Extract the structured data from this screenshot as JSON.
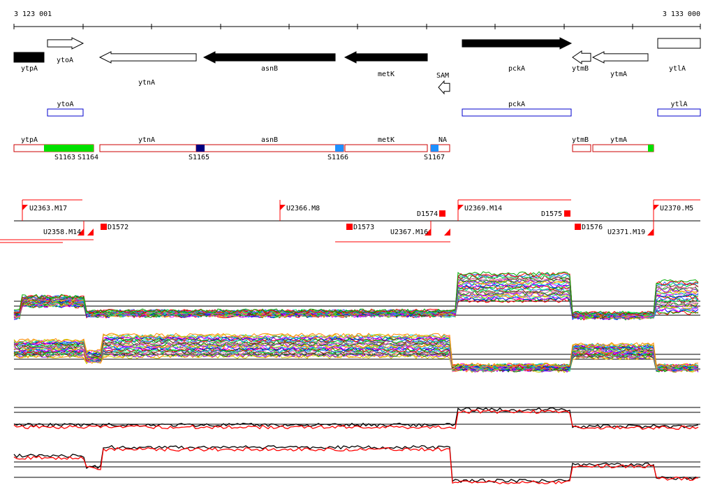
{
  "ruler": {
    "start_label": "3 123 001",
    "end_label": "3 133 000"
  },
  "genes": [
    {
      "name": "ytpA",
      "strand": "-",
      "style": "filled",
      "shape": "box"
    },
    {
      "name": "ytoA",
      "strand": "+",
      "style": "outline",
      "shape": "arrow"
    },
    {
      "name": "ytnA",
      "strand": "-",
      "style": "outline",
      "shape": "arrow"
    },
    {
      "name": "asnB",
      "strand": "-",
      "style": "filled",
      "shape": "arrow"
    },
    {
      "name": "metK",
      "strand": "-",
      "style": "filled",
      "shape": "arrow"
    },
    {
      "name": "SAM",
      "strand": "-",
      "style": "outline",
      "shape": "arrow"
    },
    {
      "name": "pckA",
      "strand": "+",
      "style": "filled",
      "shape": "arrow"
    },
    {
      "name": "ytmB",
      "strand": "-",
      "style": "outline",
      "shape": "arrow"
    },
    {
      "name": "ytmA",
      "strand": "-",
      "style": "outline",
      "shape": "arrow"
    },
    {
      "name": "ytlA",
      "strand": "+",
      "style": "outline",
      "shape": "box"
    }
  ],
  "blue_boxes": [
    {
      "name": "ytoA"
    },
    {
      "name": "pckA"
    },
    {
      "name": "ytlA"
    }
  ],
  "operon_boxes": [
    {
      "name": "ytpA"
    },
    {
      "name": "ytnA"
    },
    {
      "name": "asnB"
    },
    {
      "name": "metK"
    },
    {
      "name": "NA"
    },
    {
      "name": "ytmB"
    },
    {
      "name": "ytmA"
    }
  ],
  "segments": [
    {
      "name": "S1163",
      "color": "#00e000"
    },
    {
      "name": "S1164",
      "color": "#00e000"
    },
    {
      "name": "S1165",
      "color": "#000080"
    },
    {
      "name": "S1166",
      "color": "#1e90ff"
    },
    {
      "name": "S1167",
      "color": "#1e90ff"
    },
    {
      "name": "",
      "color": "#00e000"
    }
  ],
  "upshifts": [
    {
      "name": "U2363.M17"
    },
    {
      "name": "U2366.M8"
    },
    {
      "name": "U2369.M14"
    },
    {
      "name": "U2370.M5"
    }
  ],
  "downshifts": [
    {
      "name": "U2358.M14"
    },
    {
      "name": "U2367.M16"
    },
    {
      "name": "U2371.M19"
    }
  ],
  "dsites_top": [
    {
      "name": "D1574"
    },
    {
      "name": "D1575"
    }
  ],
  "dsites_bottom": [
    {
      "name": "D1572"
    },
    {
      "name": "D1573"
    },
    {
      "name": "D1576"
    }
  ],
  "colors": {
    "gene_fill": "#000000",
    "blue_box": "#0000cc",
    "operon_box": "#cc0000",
    "transcript": "#ff0000",
    "profile_black": "#000000",
    "profile_red": "#ff0000"
  }
}
